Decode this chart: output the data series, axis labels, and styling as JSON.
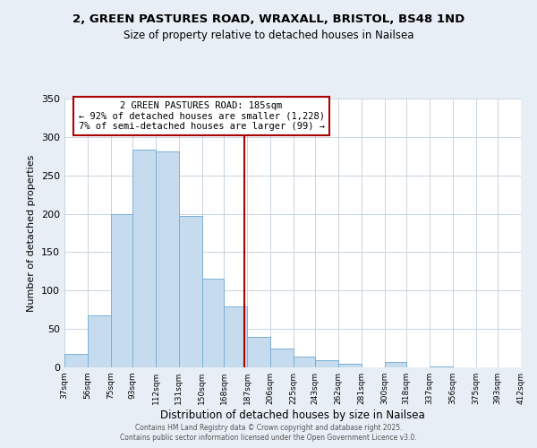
{
  "title": "2, GREEN PASTURES ROAD, WRAXALL, BRISTOL, BS48 1ND",
  "subtitle": "Size of property relative to detached houses in Nailsea",
  "xlabel": "Distribution of detached houses by size in Nailsea",
  "ylabel": "Number of detached properties",
  "bar_edges": [
    37,
    56,
    75,
    93,
    112,
    131,
    150,
    168,
    187,
    206,
    225,
    243,
    262,
    281,
    300,
    318,
    337,
    356,
    375,
    393,
    412
  ],
  "bar_heights": [
    17,
    68,
    200,
    284,
    281,
    197,
    116,
    79,
    40,
    24,
    14,
    9,
    5,
    0,
    7,
    0,
    1,
    0,
    0,
    0
  ],
  "bar_color": "#c6dcee",
  "bar_edgecolor": "#7ab0d4",
  "vline_x": 185,
  "vline_color": "#aa0000",
  "annotation_title": "2 GREEN PASTURES ROAD: 185sqm",
  "annotation_line1": "← 92% of detached houses are smaller (1,228)",
  "annotation_line2": "7% of semi-detached houses are larger (99) →",
  "ylim": [
    0,
    350
  ],
  "yticks": [
    0,
    50,
    100,
    150,
    200,
    250,
    300,
    350
  ],
  "tick_labels": [
    "37sqm",
    "56sqm",
    "75sqm",
    "93sqm",
    "112sqm",
    "131sqm",
    "150sqm",
    "168sqm",
    "187sqm",
    "206sqm",
    "225sqm",
    "243sqm",
    "262sqm",
    "281sqm",
    "300sqm",
    "318sqm",
    "337sqm",
    "356sqm",
    "375sqm",
    "393sqm",
    "412sqm"
  ],
  "footer1": "Contains HM Land Registry data © Crown copyright and database right 2025.",
  "footer2": "Contains public sector information licensed under the Open Government Licence v3.0.",
  "bg_color": "#e8eef5",
  "plot_bg_color": "#ffffff",
  "grid_color": "#c8d4e0"
}
